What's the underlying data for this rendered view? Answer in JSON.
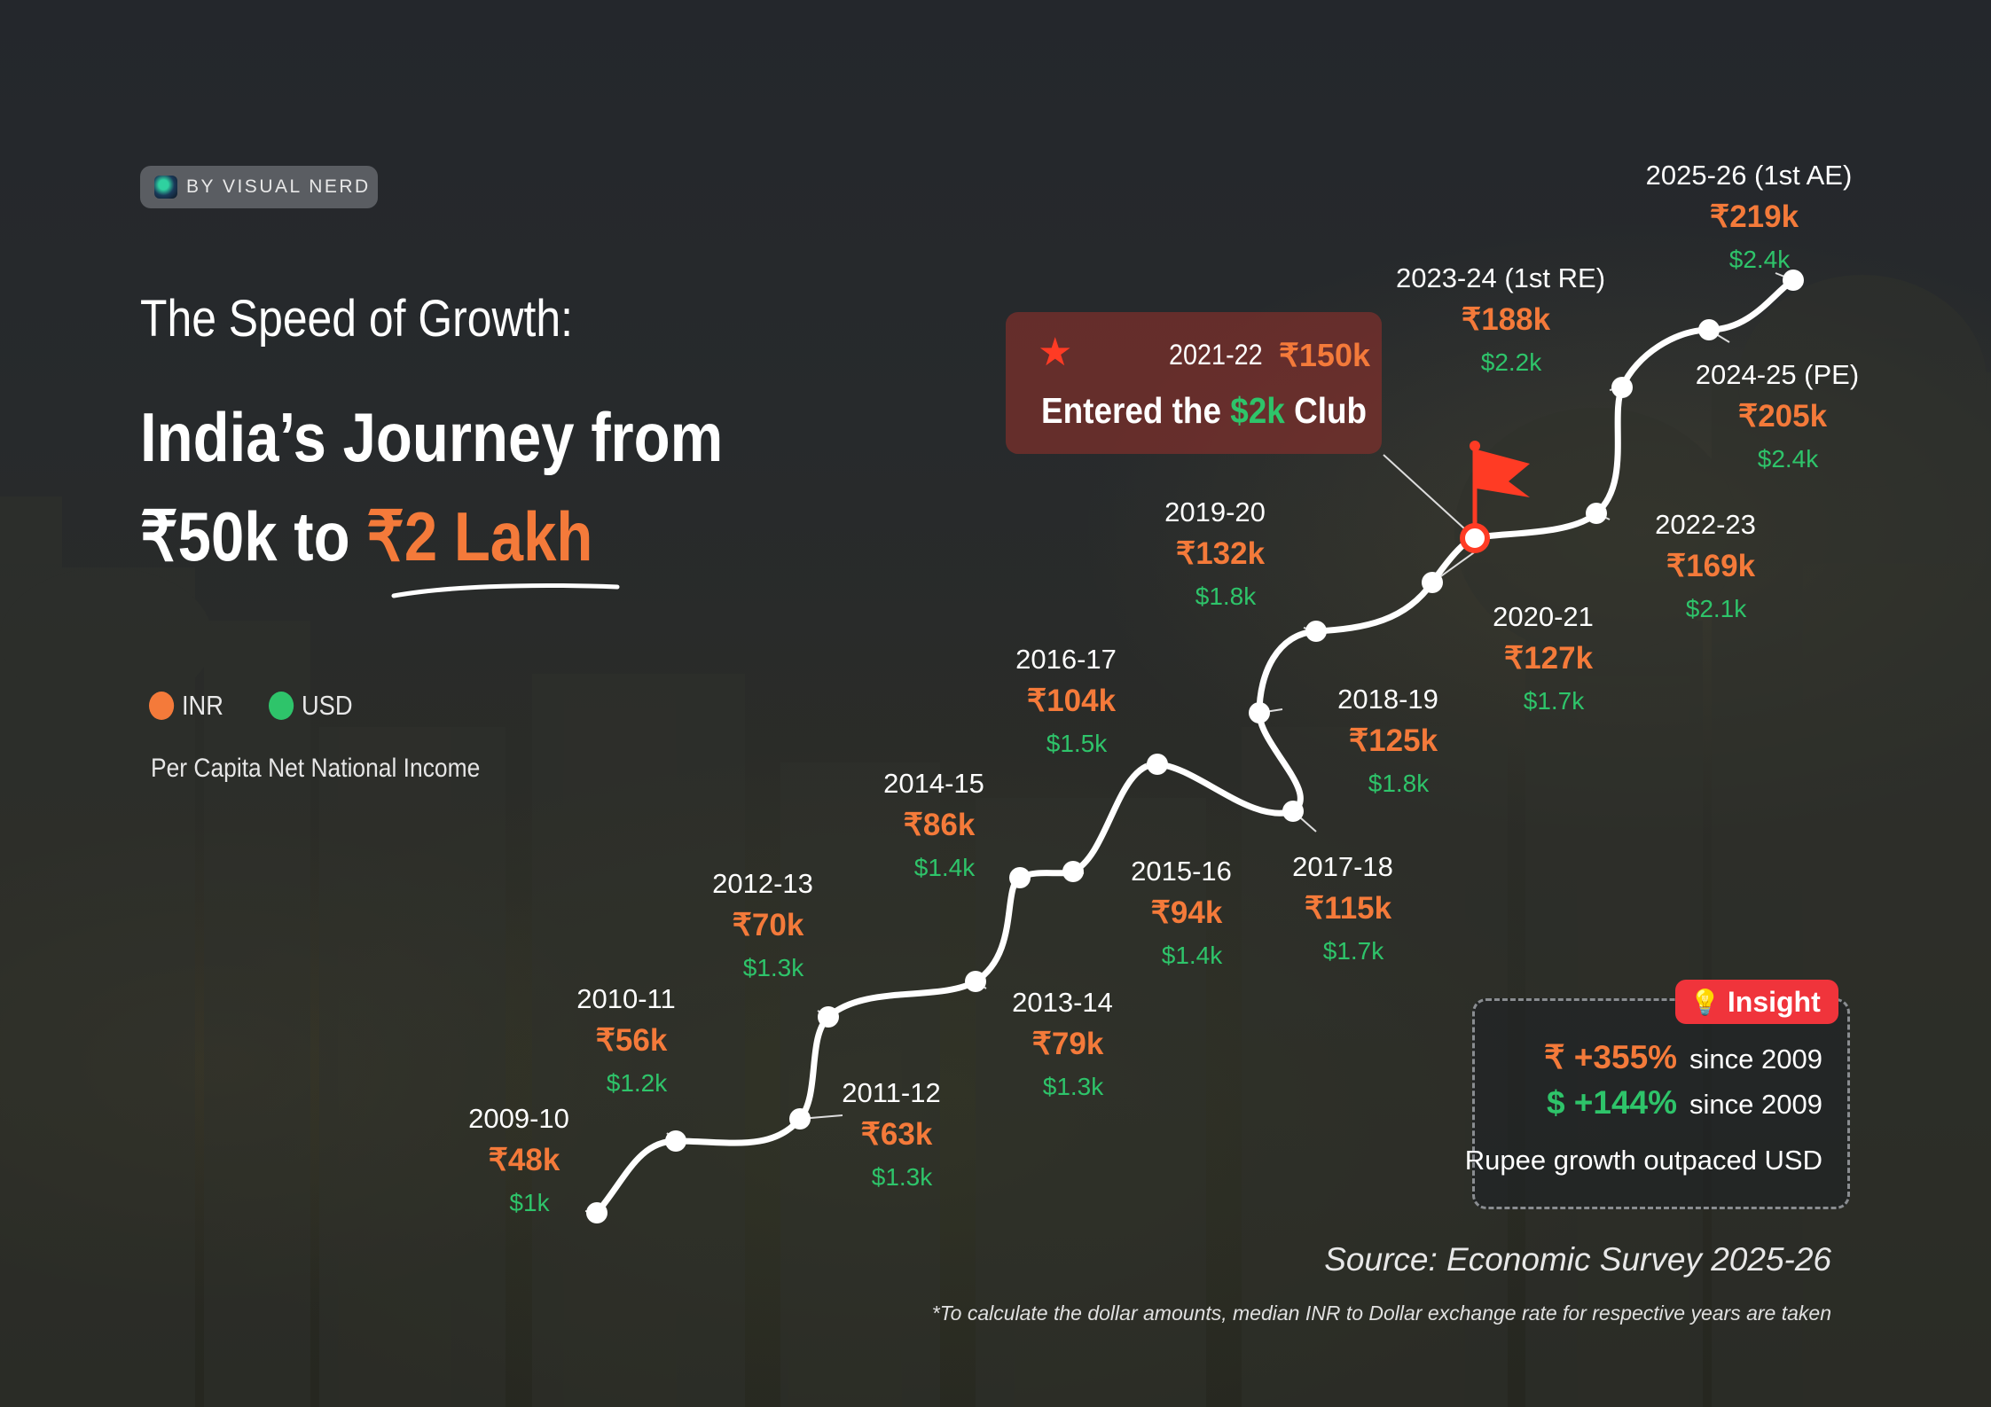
{
  "brand": {
    "label": "BY VISUAL NERD"
  },
  "header": {
    "kicker": "The Speed of Growth:",
    "headline_line1": "India’s Journey from",
    "headline_line2_prefix": "₹50k to ",
    "headline_line2_highlight": "₹2 Lakh"
  },
  "legend": {
    "inr_label": "INR",
    "usd_label": "USD",
    "inr_color": "#f47a3a",
    "usd_color": "#2ec46a"
  },
  "subtitle": "Per Capita Net National Income",
  "callout": {
    "year": "2021-22",
    "inr": "₹150k",
    "message_prefix": "Entered the ",
    "message_highlight": "$2k",
    "message_suffix": " Club"
  },
  "insight": {
    "tag": "Insight",
    "inr_growth": "₹ +355%",
    "usd_growth": "$ +144%",
    "since_label": "since 2009",
    "note": "Rupee growth outpaced USD"
  },
  "source": "Source: Economic Survey 2025-26",
  "footnote": "*To calculate the dollar amounts, median INR to Dollar exchange rate for respective years are taken",
  "chart_data": {
    "type": "line",
    "x": [
      "2009-10",
      "2010-11",
      "2011-12",
      "2012-13",
      "2013-14",
      "2014-15",
      "2015-16",
      "2016-17",
      "2017-18",
      "2018-19",
      "2019-20",
      "2020-21",
      "2021-22",
      "2022-23",
      "2023-24 (1st RE)",
      "2024-25 (PE)",
      "2025-26 (1st AE)"
    ],
    "series": [
      {
        "name": "INR",
        "values": [
          48,
          56,
          63,
          70,
          79,
          86,
          94,
          104,
          115,
          125,
          132,
          127,
          150,
          169,
          188,
          205,
          219
        ],
        "labels": [
          "₹48k",
          "₹56k",
          "₹63k",
          "₹70k",
          "₹79k",
          "₹86k",
          "₹94k",
          "₹104k",
          "₹115k",
          "₹125k",
          "₹132k",
          "₹127k",
          "₹150k",
          "₹169k",
          "₹188k",
          "₹205k",
          "₹219k"
        ]
      },
      {
        "name": "USD",
        "values": [
          1.0,
          1.2,
          1.3,
          1.3,
          1.3,
          1.4,
          1.4,
          1.5,
          1.7,
          1.8,
          1.8,
          1.7,
          null,
          2.1,
          2.2,
          2.4,
          2.4
        ],
        "labels": [
          "$1k",
          "$1.2k",
          "$1.3k",
          "$1.3k",
          "$1.3k",
          "$1.4k",
          "$1.4k",
          "$1.5k",
          "$1.7k",
          "$1.8k",
          "$1.8k",
          "$1.7k",
          "",
          "$2.1k",
          "$2.2k",
          "$2.4k",
          "$2.4k"
        ]
      }
    ],
    "highlight": {
      "index": 12,
      "marker": "flag"
    },
    "title": "India’s Journey from ₹50k to ₹2 Lakh",
    "subtitle": "Per Capita Net National Income"
  }
}
